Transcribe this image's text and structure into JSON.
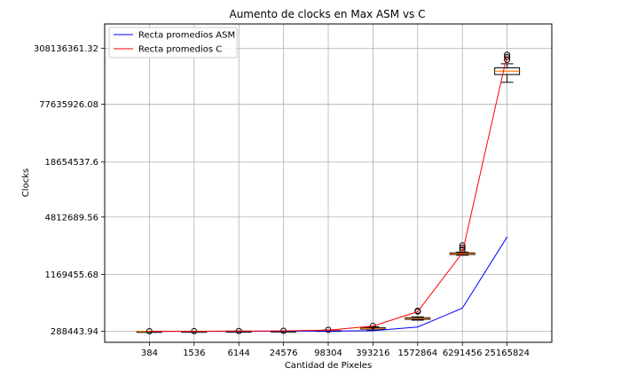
{
  "chart_data": {
    "type": "line",
    "title": "Aumento de clocks en Max ASM vs C",
    "xlabel": "Cantidad de Pixeles",
    "ylabel": "Clocks",
    "categories": [
      "384",
      "1536",
      "6144",
      "24576",
      "98304",
      "393216",
      "1572864",
      "6291456",
      "25165824"
    ],
    "y_scale": "log",
    "y_ticks": [
      288443.94,
      1169455.68,
      4812689.56,
      18654537.6,
      77635926.08,
      308136361.32
    ],
    "y_tick_labels": [
      "288443.94",
      "1169455.68",
      "4812689.56",
      "18654537.6",
      "77635926.08",
      "308136361.32"
    ],
    "ylim": [
      220000,
      560000000
    ],
    "grid": true,
    "legend_position": "top-left",
    "series": [
      {
        "name": "Recta promedios ASM",
        "color": "#0000ff",
        "values": [
          288000,
          288300,
          288600,
          289000,
          290500,
          293000,
          321000,
          510000,
          2950000
        ]
      },
      {
        "name": "Recta promedios C",
        "color": "#ff0000",
        "values": [
          288200,
          288800,
          290000,
          291500,
          297000,
          328000,
          468000,
          1990000,
          260000000
        ]
      }
    ],
    "boxes": [
      {
        "median": 288300,
        "q1": 288100,
        "q3": 288500,
        "whisker_low": 287900,
        "whisker_high": 288700,
        "outliers": [
          288900
        ]
      },
      {
        "median": 288700,
        "q1": 288400,
        "q3": 289000,
        "whisker_low": 288200,
        "whisker_high": 289300,
        "outliers": [
          289600
        ]
      },
      {
        "median": 289400,
        "q1": 289000,
        "q3": 289800,
        "whisker_low": 288700,
        "whisker_high": 290200,
        "outliers": [
          290600
        ]
      },
      {
        "median": 290600,
        "q1": 290100,
        "q3": 291100,
        "whisker_low": 289600,
        "whisker_high": 291700,
        "outliers": [
          292400
        ]
      },
      {
        "median": 294000,
        "q1": 292500,
        "q3": 295500,
        "whisker_low": 291000,
        "whisker_high": 297500,
        "outliers": [
          299500
        ]
      },
      {
        "median": 310000,
        "q1": 305000,
        "q3": 316000,
        "whisker_low": 296000,
        "whisker_high": 322000,
        "outliers": [
          330000
        ]
      },
      {
        "median": 395000,
        "q1": 388000,
        "q3": 403000,
        "whisker_low": 380000,
        "whisker_high": 412000,
        "outliers": [
          470000,
          478000
        ]
      },
      {
        "median": 1950000,
        "q1": 1915000,
        "q3": 1990000,
        "whisker_low": 1880000,
        "whisker_high": 2030000,
        "outliers": [
          2150000,
          2260000,
          2390000
        ]
      },
      {
        "median": 175000000,
        "q1": 161000000,
        "q3": 190000000,
        "whisker_low": 133000000,
        "whisker_high": 210000000,
        "outliers": [
          232000000,
          248000000,
          262000000
        ]
      }
    ]
  }
}
